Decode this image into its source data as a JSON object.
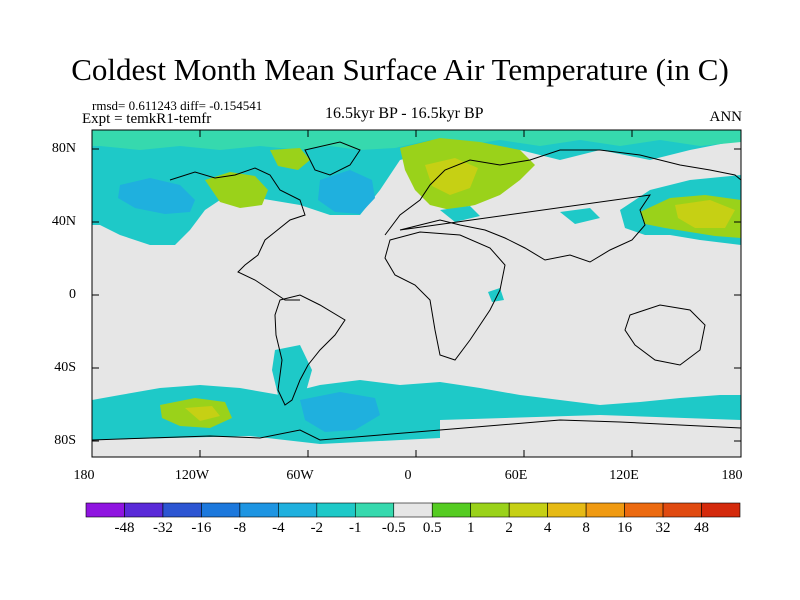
{
  "title": "Coldest Month Mean Surface Air Temperature (in C)",
  "stats": "rmsd= 0.611243  diff= -0.154541",
  "expt": "Expt = temkR1-temfr",
  "period": "16.5kyr BP - 16.5kyr BP",
  "season": "ANN",
  "lat_labels": [
    "80N",
    "40N",
    "0",
    "40S",
    "80S"
  ],
  "lon_labels": [
    "180",
    "120W",
    "60W",
    "0",
    "60E",
    "120E",
    "180"
  ],
  "colorbar": {
    "levels": [
      "-48",
      "-32",
      "-16",
      "-8",
      "-4",
      "-2",
      "-1",
      "-0.5",
      "0.5",
      "1",
      "2",
      "4",
      "8",
      "16",
      "32",
      "48"
    ],
    "colors": [
      "#8f14e0",
      "#5a2ad8",
      "#2c55d2",
      "#1c78dc",
      "#1e95e2",
      "#1fb0de",
      "#1ec9c8",
      "#36d9ae",
      "#e6e6e6",
      "#55cc22",
      "#9ad21a",
      "#c6d014",
      "#e6ba14",
      "#f09a12",
      "#ec6a10",
      "#e04a10",
      "#d42a0c"
    ]
  },
  "palette": {
    "neutral": "#e6e6e6",
    "light_cyan": "#1ec9c8",
    "teal": "#36d9ae",
    "cyan": "#1fb0de",
    "blue": "#1e95e2",
    "light_green": "#9ad21a",
    "green": "#55cc22",
    "yellow_green": "#c6d014",
    "coast": "#000000"
  }
}
